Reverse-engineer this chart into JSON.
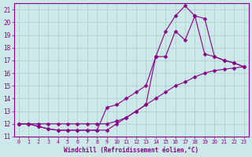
{
  "xlabel": "Windchill (Refroidissement éolien,°C)",
  "bg_color": "#cce8e8",
  "grid_color": "#aacccc",
  "line_color": "#880088",
  "xlim": [
    -0.5,
    23.5
  ],
  "ylim": [
    11,
    21.5
  ],
  "yticks": [
    11,
    12,
    13,
    14,
    15,
    16,
    17,
    18,
    19,
    20,
    21
  ],
  "xticks": [
    0,
    1,
    2,
    3,
    4,
    5,
    6,
    7,
    8,
    9,
    10,
    11,
    12,
    13,
    14,
    15,
    16,
    17,
    18,
    19,
    20,
    21,
    22,
    23
  ],
  "curve1_x": [
    0,
    1,
    2,
    3,
    4,
    5,
    6,
    7,
    8,
    9,
    10,
    11,
    12,
    13,
    14,
    15,
    16,
    17,
    18,
    19,
    20,
    21,
    22,
    23
  ],
  "curve1_y": [
    12.0,
    12.0,
    12.0,
    12.0,
    12.0,
    12.0,
    12.0,
    12.0,
    12.0,
    12.0,
    12.2,
    12.5,
    13.0,
    13.5,
    14.0,
    14.5,
    15.0,
    15.3,
    15.7,
    16.0,
    16.2,
    16.3,
    16.4,
    16.5
  ],
  "curve2_x": [
    0,
    1,
    2,
    3,
    4,
    5,
    6,
    7,
    8,
    9,
    10,
    11,
    12,
    13,
    14,
    15,
    16,
    17,
    18,
    19,
    20,
    21,
    22,
    23
  ],
  "curve2_y": [
    12.0,
    12.0,
    11.8,
    11.6,
    11.5,
    11.5,
    11.5,
    11.5,
    11.5,
    11.5,
    12.0,
    12.5,
    13.0,
    13.5,
    17.3,
    17.3,
    19.3,
    18.6,
    20.5,
    17.5,
    17.3,
    17.0,
    16.8,
    16.5
  ],
  "curve3_x": [
    0,
    1,
    2,
    3,
    4,
    5,
    6,
    7,
    8,
    9,
    10,
    11,
    12,
    13,
    14,
    15,
    16,
    17,
    18,
    19,
    20,
    21,
    22,
    23
  ],
  "curve3_y": [
    12.0,
    12.0,
    11.8,
    11.6,
    11.5,
    11.5,
    11.5,
    11.5,
    11.5,
    13.3,
    13.5,
    14.0,
    14.5,
    15.0,
    17.3,
    19.3,
    20.5,
    21.3,
    20.5,
    20.3,
    17.3,
    17.0,
    16.8,
    16.5
  ],
  "marker_size": 2.5
}
